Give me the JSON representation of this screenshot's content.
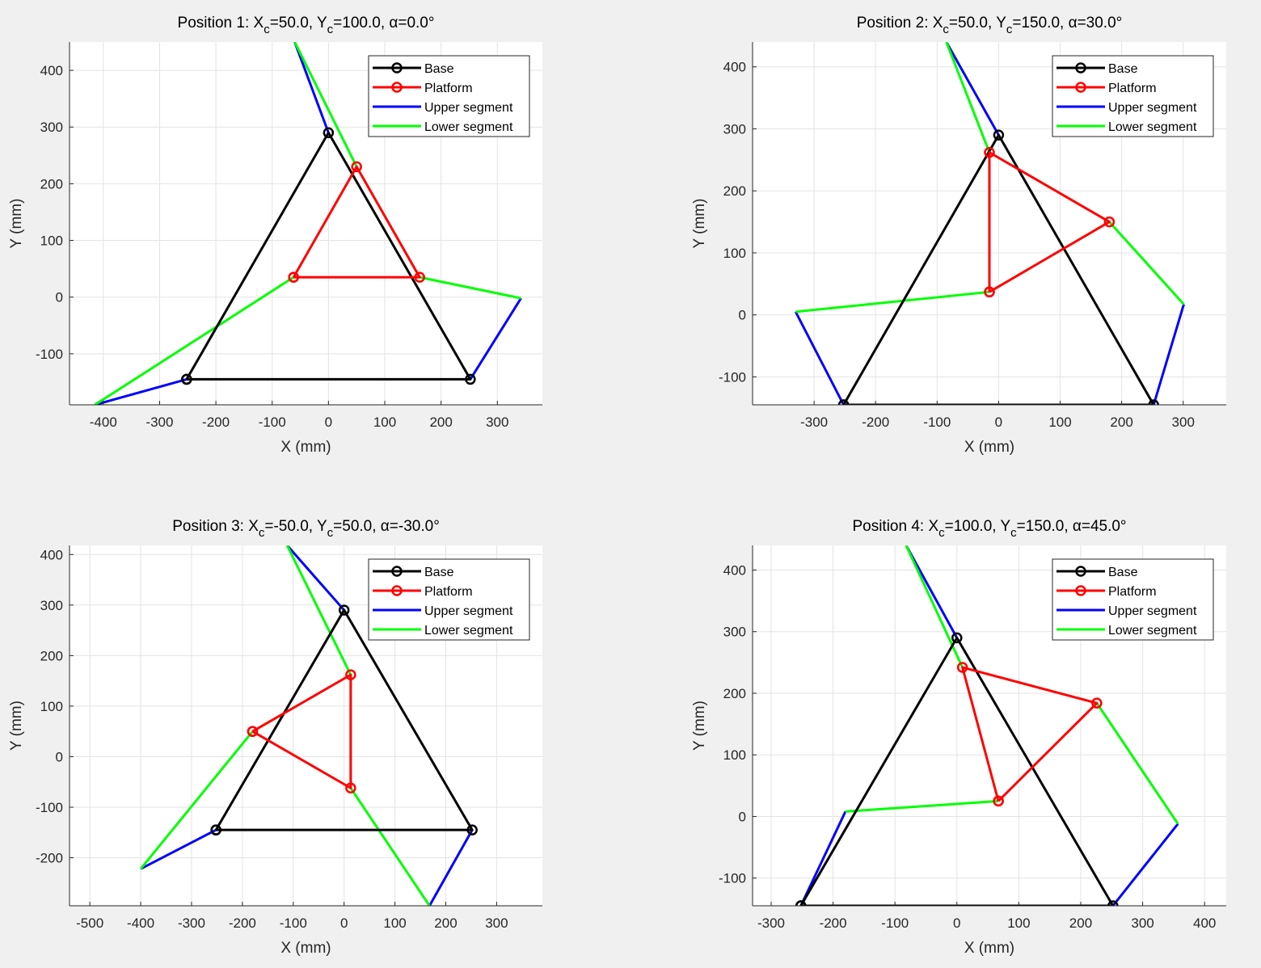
{
  "chart_data": [
    {
      "type": "line",
      "title": {
        "pre": "Position 1: X",
        "sub1": "c",
        "mid": "=50.0, Y",
        "sub2": "c",
        "post": "=100.0, α=0.0°"
      },
      "xlabel": "X (mm)",
      "ylabel": "Y (mm)",
      "xlim": [
        -460,
        380
      ],
      "ylim": [
        -190,
        450
      ],
      "xticks": [
        -400,
        -300,
        -200,
        -100,
        0,
        100,
        200,
        300
      ],
      "yticks": [
        -100,
        0,
        100,
        200,
        300,
        400
      ],
      "grid": true,
      "legend_position": "top-right",
      "series": [
        {
          "name": "Base",
          "color": "#000000",
          "markers": true,
          "x": [
            -252,
            252,
            0,
            -252
          ],
          "y": [
            -145,
            -145,
            290,
            -145
          ]
        },
        {
          "name": "Platform",
          "color": "#ff0000",
          "markers": true,
          "x": [
            -62,
            162,
            50,
            -62
          ],
          "y": [
            35,
            35,
            230,
            35
          ]
        },
        {
          "name": "Upper segment",
          "color": "#0000ff",
          "markers": false,
          "segments": [
            [
              [
                -252,
                -145
              ],
              [
                -415,
                -190
              ]
            ],
            [
              [
                252,
                -145
              ],
              [
                342,
                -2
              ]
            ],
            [
              [
                0,
                290
              ],
              [
                -60,
                450
              ]
            ]
          ]
        },
        {
          "name": "Lower segment",
          "color": "#00ff00",
          "markers": false,
          "segments": [
            [
              [
                -62,
                35
              ],
              [
                -415,
                -190
              ]
            ],
            [
              [
                162,
                35
              ],
              [
                342,
                -2
              ]
            ],
            [
              [
                50,
                230
              ],
              [
                -60,
                450
              ]
            ]
          ]
        }
      ]
    },
    {
      "type": "line",
      "title": {
        "pre": "Position 2: X",
        "sub1": "c",
        "mid": "=50.0, Y",
        "sub2": "c",
        "post": "=150.0, α=30.0°"
      },
      "xlabel": "X (mm)",
      "ylabel": "Y (mm)",
      "xlim": [
        -400,
        370
      ],
      "ylim": [
        -145,
        440
      ],
      "xticks": [
        -300,
        -200,
        -100,
        0,
        100,
        200,
        300
      ],
      "yticks": [
        -100,
        0,
        100,
        200,
        300,
        400
      ],
      "grid": true,
      "legend_position": "top-right",
      "series": [
        {
          "name": "Base",
          "color": "#000000",
          "markers": true,
          "x": [
            -252,
            252,
            0,
            -252
          ],
          "y": [
            -145,
            -145,
            290,
            -145
          ]
        },
        {
          "name": "Platform",
          "color": "#ff0000",
          "markers": true,
          "x": [
            -15,
            180,
            -15,
            -15
          ],
          "y": [
            37,
            150,
            262,
            37
          ]
        },
        {
          "name": "Upper segment",
          "color": "#0000ff",
          "markers": false,
          "segments": [
            [
              [
                -252,
                -145
              ],
              [
                -330,
                5
              ]
            ],
            [
              [
                252,
                -145
              ],
              [
                301,
                17
              ]
            ],
            [
              [
                0,
                290
              ],
              [
                -85,
                440
              ]
            ]
          ]
        },
        {
          "name": "Lower segment",
          "color": "#00ff00",
          "markers": false,
          "segments": [
            [
              [
                -15,
                37
              ],
              [
                -330,
                5
              ]
            ],
            [
              [
                180,
                150
              ],
              [
                301,
                17
              ]
            ],
            [
              [
                -15,
                262
              ],
              [
                -85,
                440
              ]
            ]
          ]
        }
      ]
    },
    {
      "type": "line",
      "title": {
        "pre": "Position 3: X",
        "sub1": "c",
        "mid": "=-50.0, Y",
        "sub2": "c",
        "post": "=50.0, α=-30.0°"
      },
      "xlabel": "X (mm)",
      "ylabel": "Y (mm)",
      "xlim": [
        -540,
        390
      ],
      "ylim": [
        -295,
        418
      ],
      "xticks": [
        -500,
        -400,
        -300,
        -200,
        -100,
        0,
        100,
        200,
        300
      ],
      "yticks": [
        -200,
        -100,
        0,
        100,
        200,
        300,
        400
      ],
      "grid": true,
      "legend_position": "top-right",
      "series": [
        {
          "name": "Base",
          "color": "#000000",
          "markers": true,
          "x": [
            -252,
            252,
            0,
            -252
          ],
          "y": [
            -145,
            -145,
            290,
            -145
          ]
        },
        {
          "name": "Platform",
          "color": "#ff0000",
          "markers": true,
          "x": [
            -180,
            13,
            13,
            -180
          ],
          "y": [
            50,
            -62,
            162,
            50
          ]
        },
        {
          "name": "Upper segment",
          "color": "#0000ff",
          "markers": false,
          "segments": [
            [
              [
                -252,
                -145
              ],
              [
                -400,
                -222
              ]
            ],
            [
              [
                252,
                -145
              ],
              [
                168,
                -295
              ]
            ],
            [
              [
                0,
                290
              ],
              [
                -112,
                418
              ]
            ]
          ]
        },
        {
          "name": "Lower segment",
          "color": "#00ff00",
          "markers": false,
          "segments": [
            [
              [
                -180,
                50
              ],
              [
                -400,
                -222
              ]
            ],
            [
              [
                13,
                -62
              ],
              [
                168,
                -295
              ]
            ],
            [
              [
                13,
                162
              ],
              [
                -112,
                418
              ]
            ]
          ]
        }
      ]
    },
    {
      "type": "line",
      "title": {
        "pre": "Position 4: X",
        "sub1": "c",
        "mid": "=100.0, Y",
        "sub2": "c",
        "post": "=150.0, α=45.0°"
      },
      "xlabel": "X (mm)",
      "ylabel": "Y (mm)",
      "xlim": [
        -330,
        435
      ],
      "ylim": [
        -145,
        440
      ],
      "xticks": [
        -300,
        -200,
        -100,
        0,
        100,
        200,
        300,
        400
      ],
      "yticks": [
        -100,
        0,
        100,
        200,
        300,
        400
      ],
      "grid": true,
      "legend_position": "top-right",
      "series": [
        {
          "name": "Base",
          "color": "#000000",
          "markers": true,
          "x": [
            -252,
            252,
            0,
            -252
          ],
          "y": [
            -145,
            -145,
            290,
            -145
          ]
        },
        {
          "name": "Platform",
          "color": "#ff0000",
          "markers": true,
          "x": [
            67,
            226,
            9,
            67
          ],
          "y": [
            25,
            184,
            242,
            25
          ]
        },
        {
          "name": "Upper segment",
          "color": "#0000ff",
          "markers": false,
          "segments": [
            [
              [
                -252,
                -145
              ],
              [
                -180,
                8
              ]
            ],
            [
              [
                252,
                -145
              ],
              [
                357,
                -12
              ]
            ],
            [
              [
                0,
                290
              ],
              [
                -82,
                440
              ]
            ]
          ]
        },
        {
          "name": "Lower segment",
          "color": "#00ff00",
          "markers": false,
          "segments": [
            [
              [
                67,
                25
              ],
              [
                -180,
                8
              ]
            ],
            [
              [
                226,
                184
              ],
              [
                357,
                -12
              ]
            ],
            [
              [
                9,
                242
              ],
              [
                -82,
                440
              ]
            ]
          ]
        }
      ]
    }
  ]
}
